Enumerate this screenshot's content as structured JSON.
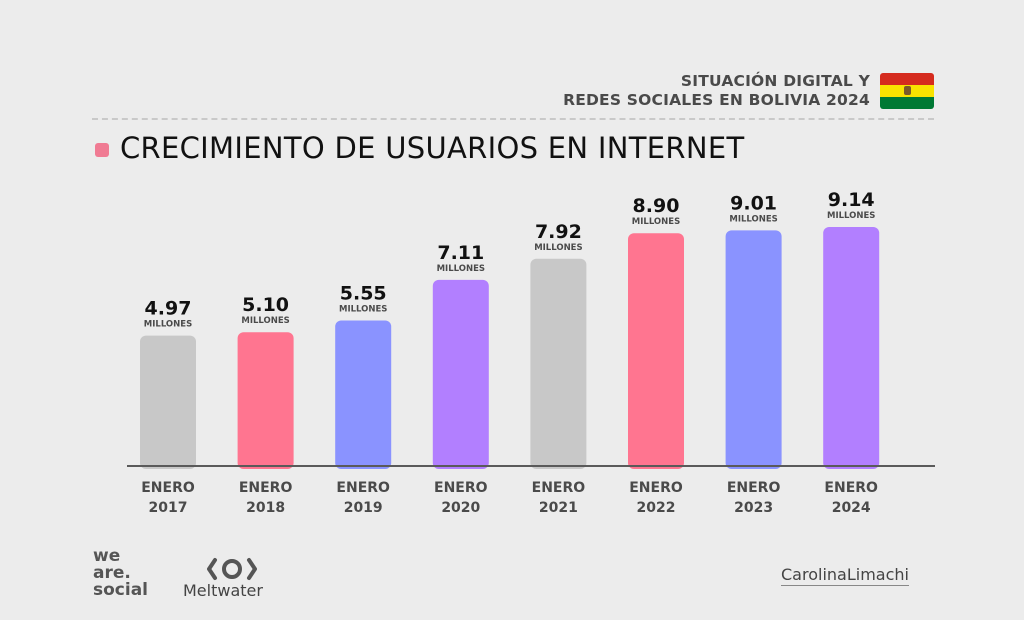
{
  "header": {
    "line1": "SITUACIÓN DIGITAL Y",
    "line2": "REDES SOCIALES EN BOLIVIA 2024",
    "flag_colors": [
      "#d52b1e",
      "#f9e300",
      "#007934"
    ]
  },
  "section": {
    "title": "CRECIMIENTO DE USUARIOS EN INTERNET",
    "marker_color": "#f07b93"
  },
  "chart_data": {
    "type": "bar",
    "title": "CRECIMIENTO DE USUARIOS EN INTERNET",
    "categories": [
      [
        "ENERO",
        "2017"
      ],
      [
        "ENERO",
        "2018"
      ],
      [
        "ENERO",
        "2019"
      ],
      [
        "ENERO",
        "2020"
      ],
      [
        "ENERO",
        "2021"
      ],
      [
        "ENERO",
        "2022"
      ],
      [
        "ENERO",
        "2023"
      ],
      [
        "ENERO",
        "2024"
      ]
    ],
    "values": [
      4.97,
      5.1,
      5.55,
      7.11,
      7.92,
      8.9,
      9.01,
      9.14
    ],
    "value_labels": [
      "4.97",
      "5.10",
      "5.55",
      "7.11",
      "7.92",
      "8.90",
      "9.01",
      "9.14"
    ],
    "unit": "MILLONES",
    "bar_colors": [
      "#c8c8c8",
      "#ff7590",
      "#8a93ff",
      "#b27fff",
      "#c8c8c8",
      "#ff7590",
      "#8a93ff",
      "#b27fff"
    ],
    "grid": false,
    "legend": "none"
  },
  "footer": {
    "we_are_social": [
      "we",
      "are.",
      "social"
    ],
    "meltwater": "Meltwater",
    "author": "CarolinaLimachi"
  }
}
